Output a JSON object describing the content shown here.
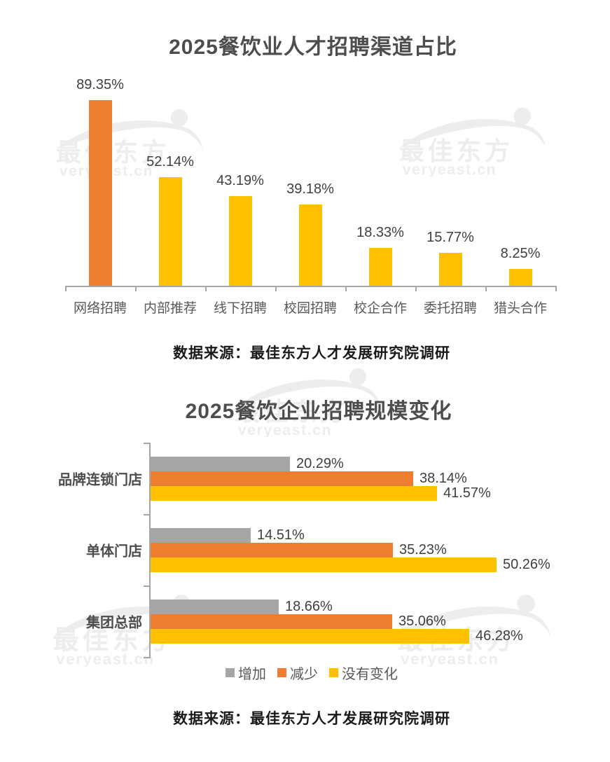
{
  "colors": {
    "orange": "#EC7D31",
    "yellow": "#FFC000",
    "gray": "#A6A6A6",
    "axis": "#A6A6A6",
    "title_text": "#4d4d4d",
    "value_text": "#404040",
    "category_text": "#595959",
    "source_text": "#1a1a1a",
    "watermark": "#EDEDED"
  },
  "watermark": {
    "brand": "最佳东方",
    "domain": "veryeast.cn"
  },
  "chart_data": [
    {
      "type": "bar",
      "orientation": "vertical",
      "title": "2025餐饮业人才招聘渠道占比",
      "categories": [
        "网络招聘",
        "内部推荐",
        "线下招聘",
        "校园招聘",
        "校企合作",
        "委托招聘",
        "猎头合作"
      ],
      "values": [
        89.35,
        52.14,
        43.19,
        39.18,
        18.33,
        15.77,
        8.25
      ],
      "value_labels": [
        "89.35%",
        "52.14%",
        "43.19%",
        "39.18%",
        "18.33%",
        "15.77%",
        "8.25%"
      ],
      "bar_colors": [
        "orange",
        "yellow",
        "yellow",
        "yellow",
        "yellow",
        "yellow",
        "yellow"
      ],
      "ylim": [
        0,
        100
      ],
      "grid": false,
      "data_labels": "above-bars",
      "source": "数据来源：最佳东方人才发展研究院调研"
    },
    {
      "type": "bar",
      "orientation": "horizontal",
      "title": "2025餐饮企业招聘规模变化",
      "categories": [
        "品牌连锁门店",
        "单体门店",
        "集团总部"
      ],
      "series": [
        {
          "name": "增加",
          "color": "gray",
          "values": [
            20.29,
            14.51,
            18.66
          ],
          "labels": [
            "20.29%",
            "14.51%",
            "18.66%"
          ]
        },
        {
          "name": "减少",
          "color": "orange",
          "values": [
            38.14,
            35.23,
            35.06
          ],
          "labels": [
            "38.14%",
            "35.23%",
            "35.06%"
          ]
        },
        {
          "name": "没有变化",
          "color": "yellow",
          "values": [
            41.57,
            50.26,
            46.28
          ],
          "labels": [
            "41.57%",
            "50.26%",
            "46.28%"
          ]
        }
      ],
      "xlim": [
        0,
        55
      ],
      "grid": false,
      "legend_position": "bottom",
      "data_labels": "end-of-bars",
      "source": "数据来源：最佳东方人才发展研究院调研"
    }
  ]
}
